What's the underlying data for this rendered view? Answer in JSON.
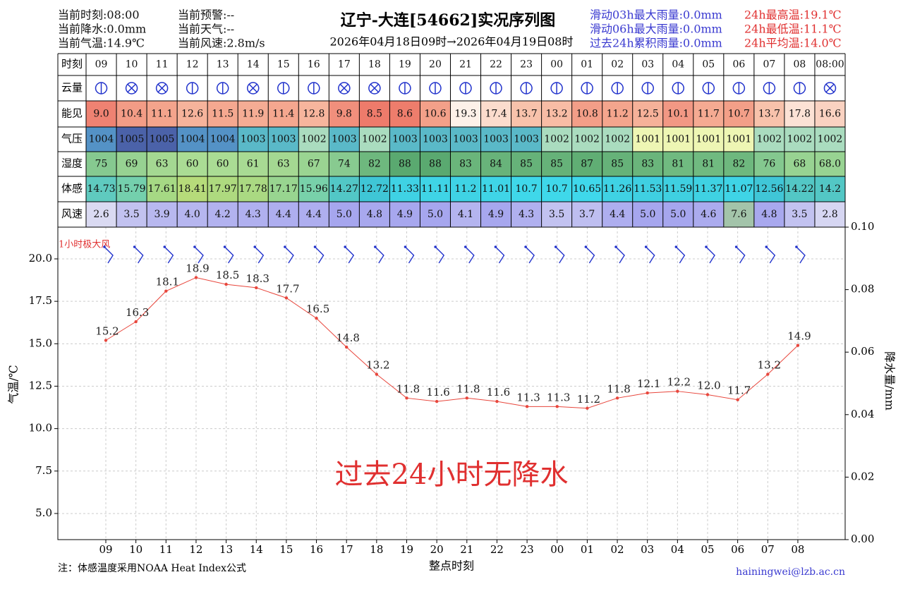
{
  "header": {
    "left": [
      "当前时刻:08:00",
      "当前降水:0.0mm",
      "当前气温:14.9℃"
    ],
    "mid": [
      "当前预警:--",
      "当前天气:--",
      "当前风速:2.8m/s"
    ],
    "title": "辽宁-大连[54662]实况序列图",
    "subtitle": "2026年04月18日09时→2026年04月19日08时",
    "rain": [
      "滑动03h最大雨量:0.0mm",
      "滑动06h最大雨量:0.0mm",
      "过去24h累积雨量:0.0mm"
    ],
    "temp": [
      "24h最高温:19.1℃",
      "24h最低温:11.1℃",
      "24h平均温:14.0℃"
    ]
  },
  "table": {
    "rows": [
      {
        "label": "时刻",
        "cells": [
          "09",
          "10",
          "11",
          "12",
          "13",
          "14",
          "15",
          "16",
          "17",
          "18",
          "19",
          "20",
          "21",
          "22",
          "23",
          "00",
          "01",
          "02",
          "03",
          "04",
          "05",
          "06",
          "07",
          "08",
          "08:00"
        ]
      },
      {
        "label": "云量"
      },
      {
        "label": "能见",
        "cells": [
          "9.0",
          "10.4",
          "11.1",
          "12.6",
          "11.5",
          "11.9",
          "11.4",
          "12.8",
          "9.8",
          "8.5",
          "8.6",
          "10.6",
          "19.3",
          "17.4",
          "13.7",
          "13.2",
          "10.8",
          "11.2",
          "12.5",
          "10.1",
          "11.7",
          "10.7",
          "13.7",
          "17.8",
          "16.6"
        ],
        "colors": [
          "#ef8272",
          "#f39c86",
          "#f4a48c",
          "#f6b39b",
          "#f5a890",
          "#f5ac94",
          "#f5a78f",
          "#f7b59d",
          "#f18f7c",
          "#ee7b6b",
          "#ee7d6c",
          "#f3a089",
          "#fdf1e9",
          "#fbdccd",
          "#f8c2ab",
          "#f8bca5",
          "#f39e88",
          "#f4a58d",
          "#f6b199",
          "#f29884",
          "#f5aa92",
          "#f39f88",
          "#f8c2ab",
          "#fce2d5",
          "#fad2c1"
        ]
      },
      {
        "label": "气压",
        "cells": [
          "1004",
          "1005",
          "1005",
          "1004",
          "1004",
          "1003",
          "1003",
          "1002",
          "1003",
          "1002",
          "1003",
          "1003",
          "1003",
          "1003",
          "1003",
          "1002",
          "1002",
          "1002",
          "1001",
          "1001",
          "1001",
          "1001",
          "1002",
          "1002",
          "1002"
        ],
        "colors": [
          "#5492c6",
          "#4b62a9",
          "#4b62a9",
          "#5492c6",
          "#5492c6",
          "#5ab9c8",
          "#5ab9c8",
          "#aadcbf",
          "#5ab9c8",
          "#aadcbf",
          "#5ab9c8",
          "#5ab9c8",
          "#5ab9c8",
          "#5ab9c8",
          "#5ab9c8",
          "#aadcbf",
          "#aadcbf",
          "#aadcbf",
          "#eef6b4",
          "#eef6b4",
          "#eef6b4",
          "#eef6b4",
          "#aadcbf",
          "#aadcbf",
          "#aadcbf"
        ]
      },
      {
        "label": "湿度",
        "cells": [
          "75",
          "69",
          "63",
          "60",
          "60",
          "61",
          "63",
          "67",
          "74",
          "82",
          "88",
          "88",
          "83",
          "84",
          "85",
          "85",
          "87",
          "85",
          "83",
          "81",
          "81",
          "82",
          "76",
          "68",
          "68.0"
        ],
        "colors": [
          "#86c990",
          "#97d292",
          "#a4d892",
          "#aadc94",
          "#aadc94",
          "#a8da93",
          "#a4d892",
          "#9ad492",
          "#88ca90",
          "#6eb87e",
          "#5aa970",
          "#5aa970",
          "#6ab57b",
          "#68b37a",
          "#66b279",
          "#66b279",
          "#60ae74",
          "#66b279",
          "#6ab57b",
          "#70ba80",
          "#70ba80",
          "#6eb87e",
          "#84c88f",
          "#98d392",
          "#98d392"
        ]
      },
      {
        "label": "体感",
        "cells": [
          "14.73",
          "15.79",
          "17.61",
          "18.41",
          "17.97",
          "17.78",
          "17.17",
          "15.96",
          "14.27",
          "12.72",
          "11.33",
          "11.11",
          "11.2",
          "11.01",
          "10.7",
          "10.7",
          "10.65",
          "11.26",
          "11.53",
          "11.59",
          "11.37",
          "11.07",
          "12.56",
          "14.22",
          "14.2"
        ],
        "colors": [
          "#5fcabf",
          "#74d0ad",
          "#a6d984",
          "#b6db7a",
          "#aeda7f",
          "#aad982",
          "#98d590",
          "#78d1aa",
          "#52c7c6",
          "#3fc6d6",
          "#3fd2e4",
          "#3fd4e6",
          "#3fd3e5",
          "#3fd5e7",
          "#3fd8ea",
          "#3fd8ea",
          "#3fd8eb",
          "#3fd2e4",
          "#3fd0e2",
          "#3fd0e1",
          "#3fd2e3",
          "#3fd4e6",
          "#40c6d7",
          "#53c7c5",
          "#53c7c5"
        ]
      },
      {
        "label": "风速",
        "cells": [
          "2.6",
          "3.5",
          "3.9",
          "4.0",
          "4.2",
          "4.3",
          "4.4",
          "4.4",
          "5.0",
          "4.8",
          "4.9",
          "5.0",
          "4.1",
          "4.9",
          "4.3",
          "3.5",
          "3.7",
          "4.4",
          "5.0",
          "5.0",
          "4.6",
          "7.6",
          "4.8",
          "3.5",
          "2.8"
        ],
        "colors": [
          "#dadaf2",
          "#c2c2f0",
          "#b8b8ef",
          "#b6b6ef",
          "#b2b2ef",
          "#b0b0ef",
          "#aeaeef",
          "#aeaeef",
          "#a6a6ee",
          "#a8a8ee",
          "#a7a7ee",
          "#a6a6ee",
          "#b4b4ef",
          "#a7a7ee",
          "#b0b0ef",
          "#c2c2f0",
          "#bebef0",
          "#aeaeef",
          "#a6a6ee",
          "#a6a6ee",
          "#ababee",
          "#a3c4aa",
          "#a8a8ee",
          "#c2c2f0",
          "#d6d6f2"
        ]
      }
    ]
  },
  "chart_data": {
    "type": "line",
    "categories": [
      "09",
      "10",
      "11",
      "12",
      "13",
      "14",
      "15",
      "16",
      "17",
      "18",
      "19",
      "20",
      "21",
      "22",
      "23",
      "00",
      "01",
      "02",
      "03",
      "04",
      "05",
      "06",
      "07",
      "08"
    ],
    "values": [
      15.2,
      16.3,
      18.1,
      18.9,
      18.5,
      18.3,
      17.7,
      16.5,
      14.8,
      13.2,
      11.8,
      11.6,
      11.8,
      11.6,
      11.3,
      11.3,
      11.2,
      11.8,
      12.1,
      12.2,
      12.0,
      11.7,
      13.2,
      14.9
    ],
    "value_labels": [
      "15.2",
      "16.3",
      "18.1",
      "18.9",
      "18.5",
      "18.3",
      "17.7",
      "16.5",
      "14.8",
      "13.2",
      "11.8",
      "11.6",
      "11.8",
      "11.6",
      "11.3",
      "11.3",
      "11.2",
      "11.8",
      "12.1",
      "12.2",
      "12.0",
      "11.7",
      "13.2",
      "14.9"
    ],
    "color": "#e8463c",
    "ylim": [
      3.46,
      21.87
    ],
    "yticks": [
      {
        "value": 5,
        "label": "5.0"
      },
      7.5,
      {
        "value": 10,
        "label": "10.0"
      },
      12.5,
      {
        "value": 15,
        "label": "15.0"
      },
      17.5,
      {
        "value": 20,
        "label": "20.0"
      }
    ],
    "y2lim": [
      0,
      0.1
    ],
    "y2ticks": [
      {
        "value": 0,
        "label": "0.00"
      },
      0.02,
      0.04,
      0.06,
      0.08,
      {
        "value": 0.1,
        "label": "0.10"
      }
    ],
    "ylabel": "气温/℃",
    "y2label": "降水量/mm",
    "xlabel": "整点时刻",
    "grid": true,
    "wind_label": "1小时极大风",
    "annotation": "过去24小时无降水"
  },
  "footer": {
    "note": "注：体感温度采用NOAA Heat Index公式",
    "email": "hainingwei@lzb.ac.cn"
  }
}
